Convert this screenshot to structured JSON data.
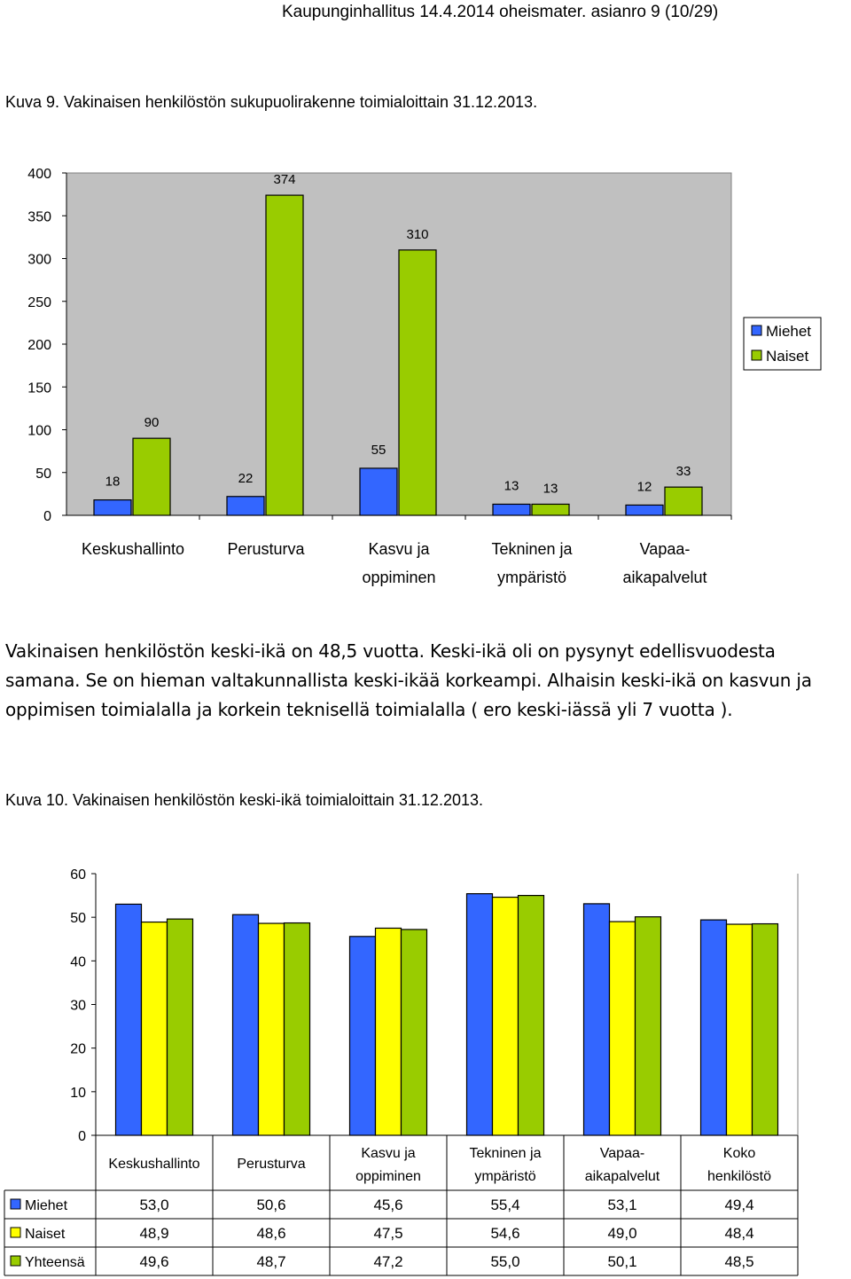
{
  "header": "Kaupunginhallitus 14.4.2014 oheismater. asianro 9 (10/29)",
  "figure9": {
    "caption": "Kuva 9. Vakinaisen henkilöstön sukupuolirakenne toimialoittain 31.12.2013."
  },
  "paragraph": "Vakinaisen henkilöstön keski-ikä on 48,5 vuotta. Keski-ikä oli on pysynyt edellisvuodesta samana. Se on hieman valtakunnallista keski-ikää korkeampi. Alhaisin keski-ikä on  kasvun ja oppimisen toimialalla ja korkein teknisellä toimialalla ( ero keski-iässä yli 7 vuotta ).",
  "figure10": {
    "caption": "Kuva 10. Vakinaisen henkilöstön keski-ikä toimialoittain 31.12.2013."
  },
  "colors": {
    "blue": "#3366ff",
    "green": "#99cc00",
    "yellow": "#ffff00",
    "plot_bg": "#ffffff",
    "grid_border": "#808080"
  },
  "chart_data": [
    {
      "type": "bar",
      "categories": [
        [
          "Keskushallinto"
        ],
        [
          "Perusturva"
        ],
        [
          "Kasvu ja",
          "oppiminen"
        ],
        [
          "Tekninen ja",
          "ympäristö"
        ],
        [
          "Vapaa-",
          "aikapalvelut"
        ]
      ],
      "series": [
        {
          "name": "Miehet",
          "color": "#3366ff",
          "values": [
            18,
            22,
            55,
            13,
            12
          ]
        },
        {
          "name": "Naiset",
          "color": "#99cc00",
          "values": [
            90,
            374,
            310,
            13,
            33
          ]
        }
      ],
      "ylim": [
        0,
        400
      ],
      "yticks": [
        0,
        50,
        100,
        150,
        200,
        250,
        300,
        350,
        400
      ],
      "data_labels": true,
      "legend": "right",
      "grid": false
    },
    {
      "type": "bar",
      "categories": [
        [
          "Keskushallinto"
        ],
        [
          "Perusturva"
        ],
        [
          "Kasvu ja",
          "oppiminen"
        ],
        [
          "Tekninen ja",
          "ympäristö"
        ],
        [
          "Vapaa-",
          "aikapalvelut"
        ],
        [
          "Koko",
          "henkilöstö"
        ]
      ],
      "series": [
        {
          "name": "Miehet",
          "color": "#3366ff",
          "values": [
            53.0,
            50.6,
            45.6,
            55.4,
            53.1,
            49.4
          ],
          "labels": [
            "53,0",
            "50,6",
            "45,6",
            "55,4",
            "53,1",
            "49,4"
          ]
        },
        {
          "name": "Naiset",
          "color": "#ffff00",
          "values": [
            48.9,
            48.6,
            47.5,
            54.6,
            49.0,
            48.4
          ],
          "labels": [
            "48,9",
            "48,6",
            "47,5",
            "54,6",
            "49,0",
            "48,4"
          ]
        },
        {
          "name": "Yhteensä",
          "color": "#99cc00",
          "values": [
            49.6,
            48.7,
            47.2,
            55.0,
            50.1,
            48.5
          ],
          "labels": [
            "49,6",
            "48,7",
            "47,2",
            "55,0",
            "50,1",
            "48,5"
          ]
        }
      ],
      "ylim": [
        0,
        60
      ],
      "yticks": [
        0,
        10,
        20,
        30,
        40,
        50,
        60
      ],
      "data_table": true,
      "legend": "in data table",
      "grid": false
    }
  ]
}
